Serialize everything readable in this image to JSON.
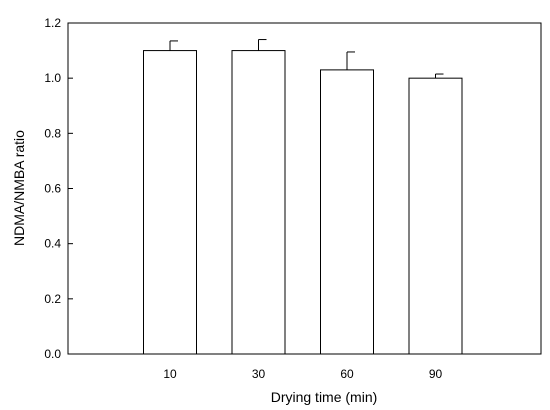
{
  "chart_data": {
    "type": "bar",
    "title": "",
    "xlabel": "Drying time (min)",
    "ylabel": "NDMA/NMBA ratio",
    "categories": [
      "10",
      "30",
      "60",
      "90"
    ],
    "values": [
      1.1,
      1.1,
      1.03,
      1.0
    ],
    "error_upper": [
      0.035,
      0.04,
      0.065,
      0.015
    ],
    "ylim": [
      0,
      1.2
    ],
    "yticks": [
      "0.0",
      "0.2",
      "0.4",
      "0.6",
      "0.8",
      "1.0",
      "1.2"
    ],
    "grid": false,
    "legend": "none",
    "bar_fill": "#ffffff",
    "bar_stroke": "#000000"
  }
}
